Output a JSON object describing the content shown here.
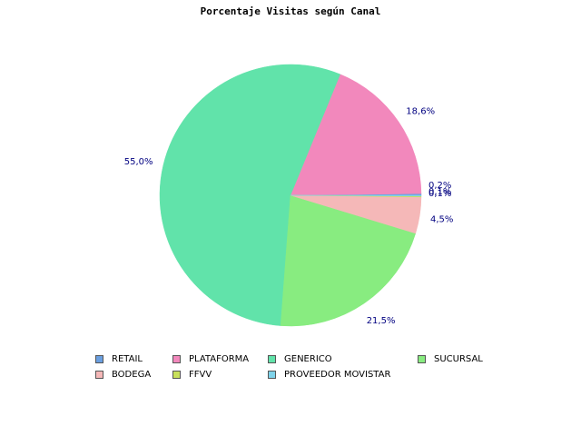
{
  "chart_data": {
    "type": "pie",
    "title": "Porcentaje Visitas según Canal",
    "slices": [
      {
        "name": "RETAIL",
        "value": 0.2,
        "label": "0,2%",
        "color": "#6a9fe0"
      },
      {
        "name": "PLATAFORMA",
        "value": 18.6,
        "label": "18,6%",
        "color": "#f288bc"
      },
      {
        "name": "GENERICO",
        "value": 55.0,
        "label": "55,0%",
        "color": "#61e3aa"
      },
      {
        "name": "SUCURSAL",
        "value": 21.5,
        "label": "21,5%",
        "color": "#88ec80"
      },
      {
        "name": "BODEGA",
        "value": 4.5,
        "label": "4,5%",
        "color": "#f5b8b8"
      },
      {
        "name": "FFVV",
        "value": 0.1,
        "label": "0,1%",
        "color": "#c8e05a"
      },
      {
        "name": "PROVEEDOR MOVISTAR",
        "value": 0.1,
        "label": "0,1%",
        "color": "#7fd3ea"
      }
    ],
    "legend": {
      "placement": "bottom",
      "rows": [
        [
          "RETAIL",
          "PLATAFORMA",
          "GENERICO",
          "SUCURSAL"
        ],
        [
          "BODEGA",
          "FFVV",
          "PROVEEDOR MOVISTAR"
        ]
      ]
    }
  }
}
